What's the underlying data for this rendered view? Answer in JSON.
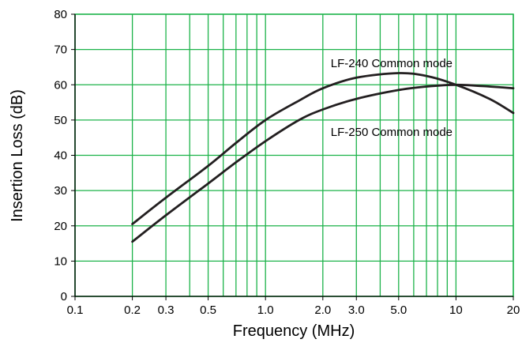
{
  "chart_data": {
    "type": "line",
    "title": "",
    "xlabel": "Frequency (MHz)",
    "ylabel": "Insertion Loss (dB)",
    "x_scale": "log",
    "xlim": [
      0.1,
      20
    ],
    "ylim": [
      0,
      80
    ],
    "x_ticks": [
      0.1,
      0.2,
      0.3,
      0.5,
      1.0,
      2.0,
      3.0,
      5.0,
      10,
      20
    ],
    "x_tick_labels": [
      "0.1",
      "0.2",
      "0.3",
      "0.5",
      "1.0",
      "2.0",
      "3.0",
      "5.0",
      "10",
      "20"
    ],
    "y_ticks": [
      0,
      10,
      20,
      30,
      40,
      50,
      60,
      70,
      80
    ],
    "y_tick_labels": [
      "0",
      "10",
      "20",
      "30",
      "40",
      "50",
      "60",
      "70",
      "80"
    ],
    "grid": true,
    "grid_color": "#1db34a",
    "line_color": "#231f20",
    "series": [
      {
        "name": "LF-240 Common mode",
        "x": [
          0.2,
          0.3,
          0.5,
          0.7,
          1.0,
          1.5,
          2.0,
          3.0,
          5.0,
          7.0,
          10,
          15,
          20
        ],
        "y": [
          20.5,
          28,
          37,
          43.5,
          50,
          55.5,
          59,
          62,
          63.3,
          62.5,
          60,
          56,
          52
        ]
      },
      {
        "name": "LF-250 Common mode",
        "x": [
          0.2,
          0.3,
          0.5,
          0.7,
          1.0,
          1.5,
          2.0,
          3.0,
          5.0,
          7.0,
          10,
          15,
          20
        ],
        "y": [
          15.5,
          23,
          32,
          38,
          44,
          50,
          53,
          56,
          58.5,
          59.5,
          60,
          59.5,
          59
        ]
      }
    ],
    "annotations": [
      {
        "text": "LF-240 Common mode",
        "x": 2.2,
        "y": 65
      },
      {
        "text": "LF-250 Common mode",
        "x": 2.2,
        "y": 45.5
      }
    ]
  }
}
